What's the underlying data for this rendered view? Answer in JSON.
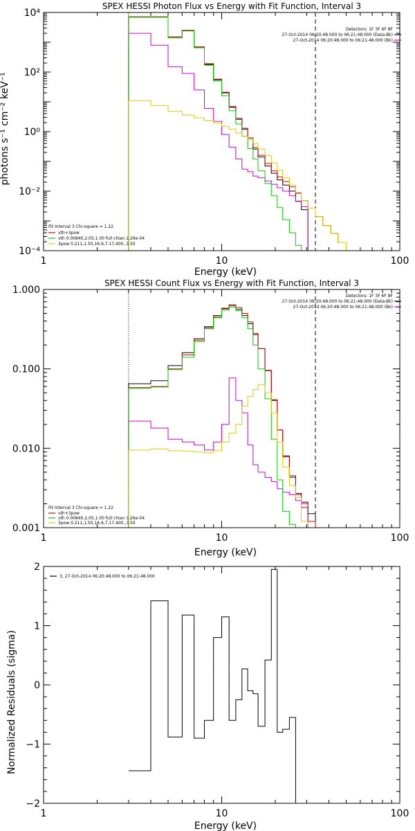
{
  "chart_data": [
    {
      "type": "line",
      "title": "SPEX HESSI Photon Flux vs Energy with Fit Function, Interval 3",
      "xlabel": "Energy (keV)",
      "ylabel": "photons s⁻¹ cm⁻² keV⁻¹",
      "xscale": "log",
      "yscale": "log",
      "xlim": [
        1,
        100
      ],
      "ylim": [
        0.0001,
        10000
      ],
      "x_ticks": [
        "1",
        "10",
        "100"
      ],
      "y_ticks": [
        "10⁻⁴",
        "10⁻²",
        "10⁰",
        "10²",
        "10⁴"
      ],
      "vlines": [
        {
          "x": 3,
          "style": "dotted",
          "color": "#000000"
        },
        {
          "x": 3,
          "style": "solid",
          "color": "#ddcc00"
        },
        {
          "x": 33.6,
          "style": "dashed",
          "color": "#000000"
        }
      ],
      "bin_edges": [
        3,
        4,
        5,
        6,
        7,
        8,
        9,
        10,
        11,
        12,
        13,
        14,
        15,
        16,
        17.5,
        19,
        20.5,
        22,
        24,
        26,
        28,
        30.5,
        33.6,
        37,
        41,
        45,
        50,
        55,
        60
      ],
      "series": [
        {
          "name": "Detectors: 1F 3F 6F 8F   27-Oct-2014 06:20:48.000 to 06:21:48.000 (Data-Bk)",
          "color": "#000000",
          "values": [
            7000,
            7000,
            1500,
            2500,
            700,
            180,
            55,
            20,
            6.5,
            2.6,
            1.2,
            0.56,
            0.26,
            0.14,
            0.07,
            0.04,
            0.024,
            0.016,
            0.01,
            0.0046,
            0.0024,
            null,
            null,
            null,
            null,
            null,
            null,
            null
          ]
        },
        {
          "name": "27-Oct-2014 06:20:48.000 to 06:21:48.000 (Bk)",
          "color": "#cc00cc",
          "values": [
            2000,
            800,
            150,
            90,
            25,
            6,
            2.2,
            0.8,
            0.3,
            0.12,
            0.055,
            0.045,
            0.032,
            0.028,
            0.022,
            0.017,
            0.013,
            0.01,
            0.007,
            0.0045,
            0.003,
            null,
            null,
            null,
            null,
            null,
            null,
            null
          ]
        },
        {
          "name": "vth+3pow",
          "color": "#cc0000",
          "values": [
            7200,
            7200,
            1500,
            2500,
            700,
            190,
            58,
            21,
            7,
            2.8,
            1.3,
            0.62,
            0.29,
            0.16,
            0.085,
            0.048,
            0.03,
            0.021,
            0.014,
            0.0085,
            0.0048,
            0.0027,
            0.0014,
            0.0007,
            0.00038,
            0.00019,
            0.0001,
            null
          ]
        },
        {
          "name": "vth 0.00840,2.05,1.00  full chian 1.26e-04",
          "color": "#00cc00",
          "values": [
            7000,
            7000,
            1400,
            2400,
            650,
            170,
            50,
            16,
            5,
            1.8,
            0.7,
            0.27,
            0.12,
            0.048,
            0.018,
            0.007,
            0.0028,
            0.0011,
            0.0004,
            0.00015,
            0.0001,
            null,
            null,
            null,
            null,
            null,
            null,
            null
          ]
        },
        {
          "name": "3pow 0.211,1.50,16.9,7.17,400.,3.50",
          "color": "#ddcc00",
          "values": [
            11,
            7.5,
            4.8,
            3.6,
            2.9,
            2.3,
            1.9,
            1.5,
            1.2,
            0.9,
            0.7,
            0.56,
            0.4,
            0.26,
            0.16,
            0.09,
            0.05,
            0.028,
            0.016,
            0.009,
            0.0048,
            0.0027,
            0.0014,
            0.0007,
            0.00038,
            0.00019,
            0.0001,
            null
          ]
        }
      ],
      "annotation": "Fit Interval 3   Chi-square = 1.22",
      "legend_placement": "top-right, bottom-left"
    },
    {
      "type": "line",
      "title": "SPEX HESSI Count Flux vs Energy with Fit Function, Interval 3",
      "xlabel": "Energy (keV)",
      "ylabel": "",
      "xscale": "log",
      "yscale": "log",
      "xlim": [
        1,
        100
      ],
      "ylim": [
        0.001,
        1
      ],
      "x_ticks": [
        "1",
        "10",
        "100"
      ],
      "y_ticks": [
        "0.001",
        "0.010",
        "0.100",
        "1.000"
      ],
      "vlines": [
        {
          "x": 3,
          "style": "dotted",
          "color": "#000000"
        },
        {
          "x": 33.6,
          "style": "dashed",
          "color": "#000000"
        }
      ],
      "bin_edges": [
        3,
        4,
        5,
        6,
        7,
        8,
        9,
        10,
        11,
        12,
        13,
        14,
        15,
        16,
        17.5,
        19,
        20.5,
        22,
        24,
        26,
        28,
        30.5,
        33.6
      ],
      "series": [
        {
          "name": "Detectors: 1F 3F 6F 8F   27-Oct-2014 06:20:48.000 to 06:21:48.000 (Data-Bk)",
          "color": "#000000",
          "values": [
            0.065,
            0.071,
            0.11,
            0.16,
            0.24,
            0.34,
            0.47,
            0.58,
            0.63,
            0.56,
            0.47,
            0.37,
            0.27,
            0.18,
            0.095,
            0.04,
            0.017,
            0.008,
            0.0045,
            0.0027,
            0.0021,
            0.0015
          ]
        },
        {
          "name": "27-Oct-2014 06:20:48.000 to 06:21:48.000 (Bk)",
          "color": "#cc00cc",
          "values": [
            0.022,
            0.018,
            0.013,
            0.012,
            0.011,
            0.0095,
            0.012,
            0.02,
            0.077,
            0.04,
            0.028,
            0.011,
            0.0062,
            0.005,
            0.0043,
            0.0038,
            0.0031,
            0.0028,
            0.0026,
            0.0022,
            0.002,
            null
          ]
        },
        {
          "name": "vth+3pow",
          "color": "#cc0000",
          "values": [
            0.058,
            0.06,
            0.1,
            0.15,
            0.23,
            0.33,
            0.45,
            0.57,
            0.64,
            0.59,
            0.5,
            0.39,
            0.28,
            0.18,
            0.096,
            0.041,
            0.017,
            0.0078,
            0.0043,
            0.0026,
            0.0018,
            0.0012
          ]
        },
        {
          "name": "vth 0.00840,2.05,1.00  full chian 1.26e-04",
          "color": "#00cc00",
          "values": [
            0.057,
            0.059,
            0.098,
            0.14,
            0.22,
            0.32,
            0.44,
            0.55,
            0.6,
            0.54,
            0.44,
            0.32,
            0.2,
            0.1,
            0.042,
            0.013,
            0.004,
            0.0016,
            0.0011,
            null,
            null,
            null
          ]
        },
        {
          "name": "3pow 0.211,1.50,16.9,7.17,400.,3.50",
          "color": "#ddcc00",
          "values": [
            0.0095,
            0.0098,
            0.0093,
            0.0092,
            0.009,
            0.0088,
            0.0093,
            0.012,
            0.0155,
            0.02,
            0.034,
            0.045,
            0.055,
            0.063,
            0.05,
            0.028,
            0.012,
            0.0058,
            0.0034,
            0.0024,
            0.0012,
            null
          ]
        }
      ],
      "annotation": "Fit Interval 3   Chi-square = 1.22",
      "legend_placement": "top-right, bottom-left"
    },
    {
      "type": "line",
      "title": "",
      "xlabel": "Energy (keV)",
      "ylabel": "Normalized Residuals (sigma)",
      "xscale": "log",
      "yscale": "linear",
      "xlim": [
        1,
        100
      ],
      "ylim": [
        -2,
        2
      ],
      "x_ticks": [
        "1",
        "10",
        "100"
      ],
      "y_ticks": [
        "−2",
        "−1",
        "0",
        "1",
        "2"
      ],
      "bin_edges": [
        3,
        4,
        5,
        6,
        7,
        8,
        9,
        10,
        11,
        12,
        13,
        14,
        15,
        16,
        17.5,
        19,
        20.5,
        22,
        24,
        26,
        28,
        30.5,
        33.6
      ],
      "series": [
        {
          "name": "3, 27-Oct-2014 06:20:48.000 to 06:21:48.000",
          "color": "#000000",
          "values": [
            -1.45,
            1.42,
            -0.88,
            1.18,
            -0.9,
            -0.6,
            0.8,
            1.15,
            -0.6,
            -0.25,
            0.27,
            -0.1,
            -0.15,
            -0.7,
            0.42,
            1.95,
            -0.8,
            -0.75,
            -0.55,
            -2.05
          ]
        }
      ],
      "legend_placement": "top-left"
    }
  ],
  "legends": {
    "p1_tr_0": "Detectors: 1F 3F 6F 8F",
    "p1_tr_1": "27-Oct-2014 06:20:48.000 to 06:21:48.000 (Data-Bk)",
    "p1_tr_2": "27-Oct-2014 06:20:48.000 to 06:21:48.000 (Bk)",
    "p1_bl_0": "Fit Interval 3   Chi-square = 1.22",
    "p1_bl_1": "vth+3pow",
    "p1_bl_2": "vth 0.00840,2.05,1.00  full chian 1.26e-04",
    "p1_bl_3": "3pow 0.211,1.50,16.9,7.17,400.,3.50",
    "p2_tr_0": "Detectors: 1F 3F 6F 8F",
    "p2_tr_1": "27-Oct-2014 06:20:48.000 to 06:21:48.000 (Data-Bk)",
    "p2_tr_2": "27-Oct-2014 06:20:48.000 to 06:21:48.000 (Bk)",
    "p2_bl_0": "Fit Interval 3   Chi-square = 1.22",
    "p2_bl_1": "vth+3pow",
    "p2_bl_2": "vth 0.00840,2.05,1.00  full chian 1.26e-04",
    "p2_bl_3": "3pow 0.211,1.50,16.9,7.17,400.,3.50",
    "p3_tl_0": "3, 27-Oct-2014 06:20:48.000 to 06:21:48.000"
  }
}
